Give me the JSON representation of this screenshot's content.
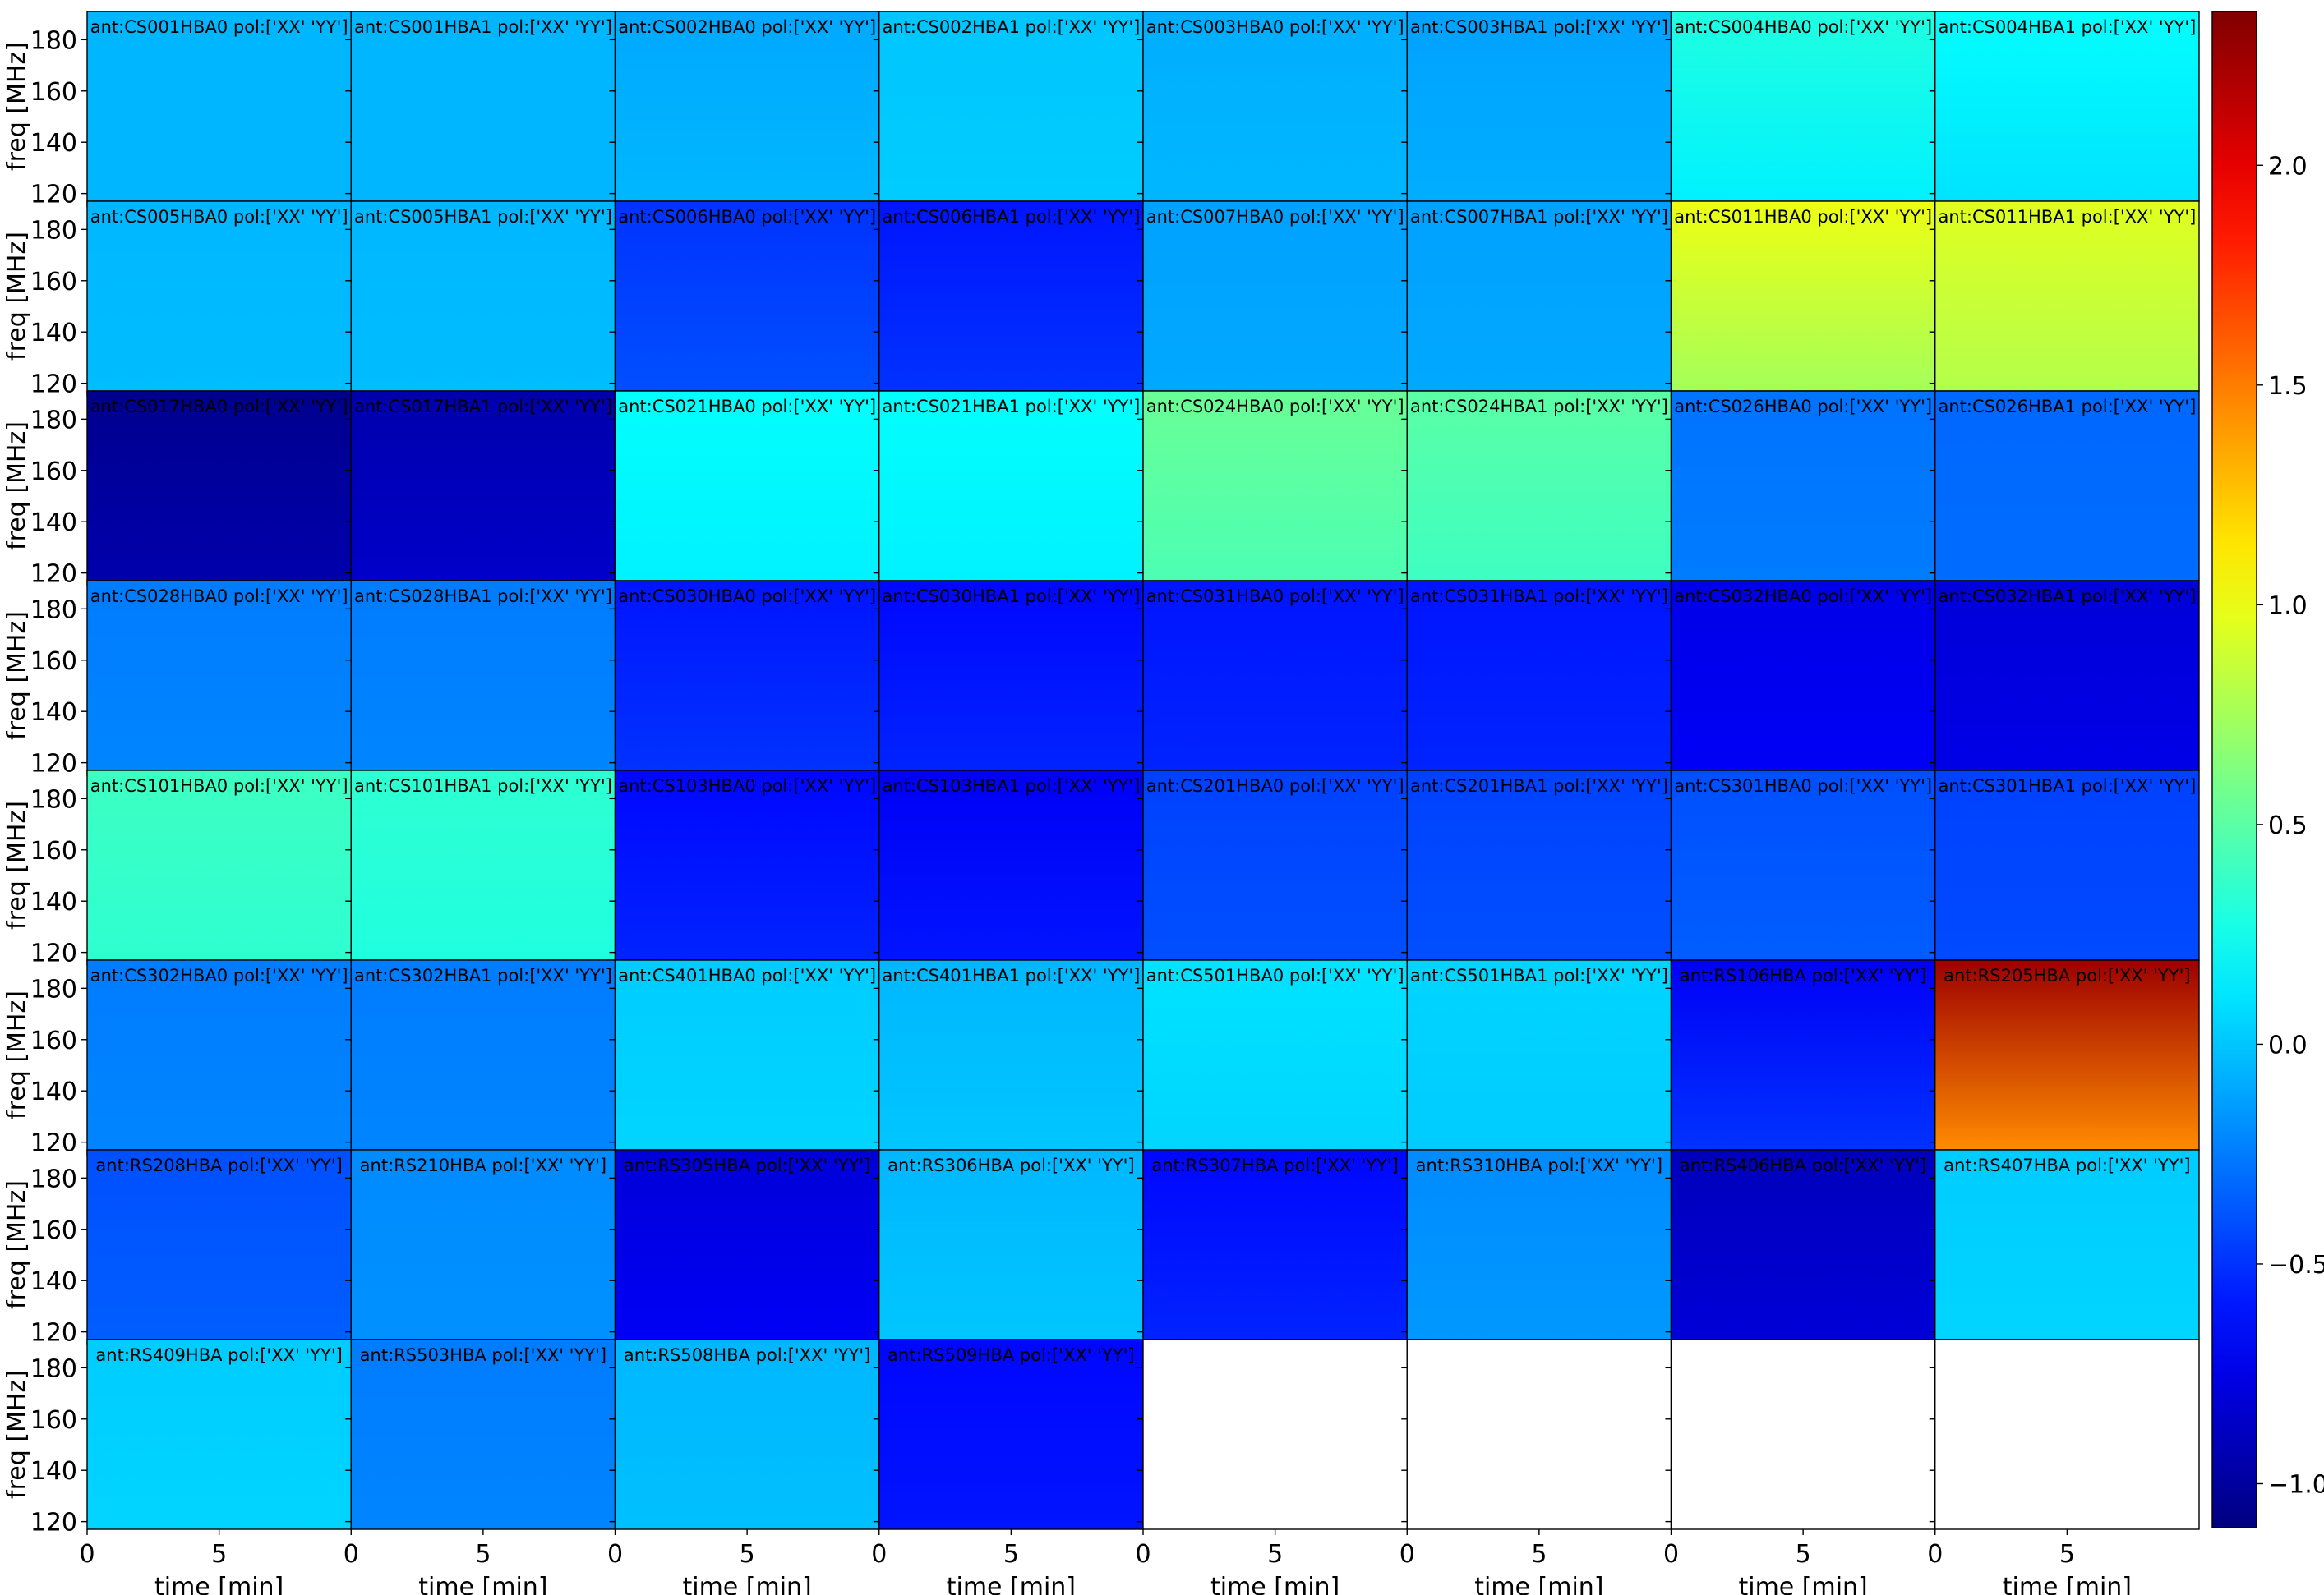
{
  "chart_data": {
    "type": "heatmap",
    "xlabel": "time [min]",
    "ylabel": "freq [MHz]",
    "xticks": [
      "0",
      "5"
    ],
    "yticks": [
      "120",
      "140",
      "160",
      "180"
    ],
    "xlim": [
      0,
      10
    ],
    "ylim": [
      117,
      191
    ],
    "grid": false,
    "layout": {
      "rows": 8,
      "cols": 8
    },
    "colorbar": {
      "colormap": "jet",
      "vmin": -1.1,
      "vmax": 2.35,
      "ticks": [
        "−1.0",
        "−0.5",
        "0.0",
        "0.5",
        "1.0",
        "1.5",
        "2.0"
      ],
      "tick_values": [
        -1.0,
        -0.5,
        0.0,
        0.5,
        1.0,
        1.5,
        2.0
      ]
    },
    "panels": [
      {
        "title": "ant:CS001HBA0 pol:['XX' 'YY']",
        "value_top": -0.05,
        "value_bottom": -0.05
      },
      {
        "title": "ant:CS001HBA1 pol:['XX' 'YY']",
        "value_top": -0.05,
        "value_bottom": -0.05
      },
      {
        "title": "ant:CS002HBA0 pol:['XX' 'YY']",
        "value_top": -0.1,
        "value_bottom": -0.05
      },
      {
        "title": "ant:CS002HBA1 pol:['XX' 'YY']",
        "value_top": 0.0,
        "value_bottom": 0.02
      },
      {
        "title": "ant:CS003HBA0 pol:['XX' 'YY']",
        "value_top": -0.08,
        "value_bottom": -0.05
      },
      {
        "title": "ant:CS003HBA1 pol:['XX' 'YY']",
        "value_top": -0.12,
        "value_bottom": -0.08
      },
      {
        "title": "ant:CS004HBA0 pol:['XX' 'YY']",
        "value_top": 0.3,
        "value_bottom": 0.15
      },
      {
        "title": "ant:CS004HBA1 pol:['XX' 'YY']",
        "value_top": 0.2,
        "value_bottom": 0.1
      },
      {
        "title": "ant:CS005HBA0 pol:['XX' 'YY']",
        "value_top": -0.05,
        "value_bottom": -0.03
      },
      {
        "title": "ant:CS005HBA1 pol:['XX' 'YY']",
        "value_top": -0.05,
        "value_bottom": -0.03
      },
      {
        "title": "ant:CS006HBA0 pol:['XX' 'YY']",
        "value_top": -0.5,
        "value_bottom": -0.4
      },
      {
        "title": "ant:CS006HBA1 pol:['XX' 'YY']",
        "value_top": -0.6,
        "value_bottom": -0.5
      },
      {
        "title": "ant:CS007HBA0 pol:['XX' 'YY']",
        "value_top": -0.12,
        "value_bottom": -0.1
      },
      {
        "title": "ant:CS007HBA1 pol:['XX' 'YY']",
        "value_top": -0.12,
        "value_bottom": -0.1
      },
      {
        "title": "ant:CS011HBA0 pol:['XX' 'YY']",
        "value_top": 1.0,
        "value_bottom": 0.75
      },
      {
        "title": "ant:CS011HBA1 pol:['XX' 'YY']",
        "value_top": 0.95,
        "value_bottom": 0.8
      },
      {
        "title": "ant:CS017HBA0 pol:['XX' 'YY']",
        "value_top": -1.05,
        "value_bottom": -0.95
      },
      {
        "title": "ant:CS017HBA1 pol:['XX' 'YY']",
        "value_top": -0.95,
        "value_bottom": -0.85
      },
      {
        "title": "ant:CS021HBA0 pol:['XX' 'YY']",
        "value_top": 0.2,
        "value_bottom": 0.15
      },
      {
        "title": "ant:CS021HBA1 pol:['XX' 'YY']",
        "value_top": 0.2,
        "value_bottom": 0.15
      },
      {
        "title": "ant:CS024HBA0 pol:['XX' 'YY']",
        "value_top": 0.55,
        "value_bottom": 0.45
      },
      {
        "title": "ant:CS024HBA1 pol:['XX' 'YY']",
        "value_top": 0.5,
        "value_bottom": 0.4
      },
      {
        "title": "ant:CS026HBA0 pol:['XX' 'YY']",
        "value_top": -0.28,
        "value_bottom": -0.25
      },
      {
        "title": "ant:CS026HBA1 pol:['XX' 'YY']",
        "value_top": -0.32,
        "value_bottom": -0.3
      },
      {
        "title": "ant:CS028HBA0 pol:['XX' 'YY']",
        "value_top": -0.25,
        "value_bottom": -0.22
      },
      {
        "title": "ant:CS028HBA1 pol:['XX' 'YY']",
        "value_top": -0.25,
        "value_bottom": -0.22
      },
      {
        "title": "ant:CS030HBA0 pol:['XX' 'YY']",
        "value_top": -0.6,
        "value_bottom": -0.5
      },
      {
        "title": "ant:CS030HBA1 pol:['XX' 'YY']",
        "value_top": -0.65,
        "value_bottom": -0.55
      },
      {
        "title": "ant:CS031HBA0 pol:['XX' 'YY']",
        "value_top": -0.6,
        "value_bottom": -0.55
      },
      {
        "title": "ant:CS031HBA1 pol:['XX' 'YY']",
        "value_top": -0.6,
        "value_bottom": -0.55
      },
      {
        "title": "ant:CS032HBA0 pol:['XX' 'YY']",
        "value_top": -0.75,
        "value_bottom": -0.7
      },
      {
        "title": "ant:CS032HBA1 pol:['XX' 'YY']",
        "value_top": -0.8,
        "value_bottom": -0.75
      },
      {
        "title": "ant:CS101HBA0 pol:['XX' 'YY']",
        "value_top": 0.4,
        "value_bottom": 0.35
      },
      {
        "title": "ant:CS101HBA1 pol:['XX' 'YY']",
        "value_top": 0.35,
        "value_bottom": 0.3
      },
      {
        "title": "ant:CS103HBA0 pol:['XX' 'YY']",
        "value_top": -0.65,
        "value_bottom": -0.55
      },
      {
        "title": "ant:CS103HBA1 pol:['XX' 'YY']",
        "value_top": -0.7,
        "value_bottom": -0.6
      },
      {
        "title": "ant:CS201HBA0 pol:['XX' 'YY']",
        "value_top": -0.45,
        "value_bottom": -0.4
      },
      {
        "title": "ant:CS201HBA1 pol:['XX' 'YY']",
        "value_top": -0.45,
        "value_bottom": -0.4
      },
      {
        "title": "ant:CS301HBA0 pol:['XX' 'YY']",
        "value_top": -0.4,
        "value_bottom": -0.35
      },
      {
        "title": "ant:CS301HBA1 pol:['XX' 'YY']",
        "value_top": -0.45,
        "value_bottom": -0.42
      },
      {
        "title": "ant:CS302HBA0 pol:['XX' 'YY']",
        "value_top": -0.25,
        "value_bottom": -0.22
      },
      {
        "title": "ant:CS302HBA1 pol:['XX' 'YY']",
        "value_top": -0.25,
        "value_bottom": -0.22
      },
      {
        "title": "ant:CS401HBA0 pol:['XX' 'YY']",
        "value_top": 0.02,
        "value_bottom": 0.05
      },
      {
        "title": "ant:CS401HBA1 pol:['XX' 'YY']",
        "value_top": -0.05,
        "value_bottom": 0.0
      },
      {
        "title": "ant:CS501HBA0 pol:['XX' 'YY']",
        "value_top": 0.1,
        "value_bottom": 0.05
      },
      {
        "title": "ant:CS501HBA1 pol:['XX' 'YY']",
        "value_top": 0.05,
        "value_bottom": 0.02
      },
      {
        "title": "ant:RS106HBA pol:['XX' 'YY']",
        "value_top": -0.7,
        "value_bottom": -0.5
      },
      {
        "title": "ant:RS205HBA pol:['XX' 'YY']",
        "value_top": 2.25,
        "value_bottom": 1.45
      },
      {
        "title": "ant:RS208HBA pol:['XX' 'YY']",
        "value_top": -0.4,
        "value_bottom": -0.35
      },
      {
        "title": "ant:RS210HBA pol:['XX' 'YY']",
        "value_top": -0.2,
        "value_bottom": -0.18
      },
      {
        "title": "ant:RS305HBA pol:['XX' 'YY']",
        "value_top": -0.8,
        "value_bottom": -0.7
      },
      {
        "title": "ant:RS306HBA pol:['XX' 'YY']",
        "value_top": -0.05,
        "value_bottom": 0.0
      },
      {
        "title": "ant:RS307HBA pol:['XX' 'YY']",
        "value_top": -0.65,
        "value_bottom": -0.55
      },
      {
        "title": "ant:RS310HBA pol:['XX' 'YY']",
        "value_top": -0.2,
        "value_bottom": -0.15
      },
      {
        "title": "ant:RS406HBA pol:['XX' 'YY']",
        "value_top": -0.9,
        "value_bottom": -0.8
      },
      {
        "title": "ant:RS407HBA pol:['XX' 'YY']",
        "value_top": 0.02,
        "value_bottom": 0.05
      },
      {
        "title": "ant:RS409HBA pol:['XX' 'YY']",
        "value_top": 0.02,
        "value_bottom": 0.05
      },
      {
        "title": "ant:RS503HBA pol:['XX' 'YY']",
        "value_top": -0.25,
        "value_bottom": -0.22
      },
      {
        "title": "ant:RS508HBA pol:['XX' 'YY']",
        "value_top": -0.05,
        "value_bottom": -0.02
      },
      {
        "title": "ant:RS509HBA pol:['XX' 'YY']",
        "value_top": -0.65,
        "value_bottom": -0.6
      }
    ]
  }
}
